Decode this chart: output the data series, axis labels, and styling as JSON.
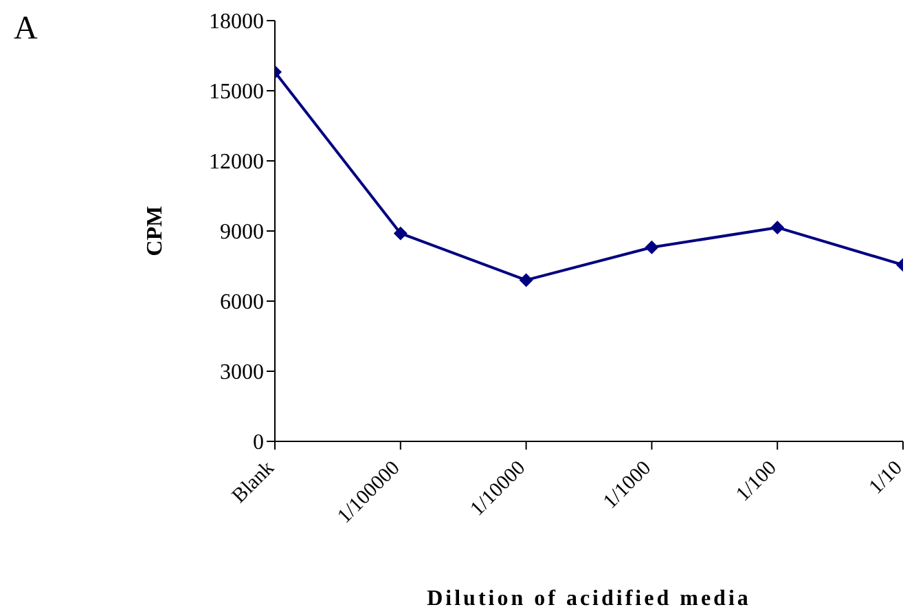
{
  "chart_data": {
    "type": "line",
    "xlabel": "Dilution of acidified media",
    "ylabel": "CPM",
    "annotations": [
      "A"
    ],
    "categories": [
      "Blank",
      "1/100000",
      "1/10000",
      "1/1000",
      "1/100",
      "1/10"
    ],
    "series": [
      {
        "color": "#000080",
        "values": [
          15800,
          8900,
          6900,
          8300,
          9150,
          7550
        ]
      }
    ],
    "ylim": [
      0,
      18000
    ],
    "yticks": [
      0,
      3000,
      6000,
      9000,
      12000,
      15000,
      18000
    ],
    "grid": false,
    "legend": false,
    "marker": "diamond",
    "line_style": "solid"
  }
}
